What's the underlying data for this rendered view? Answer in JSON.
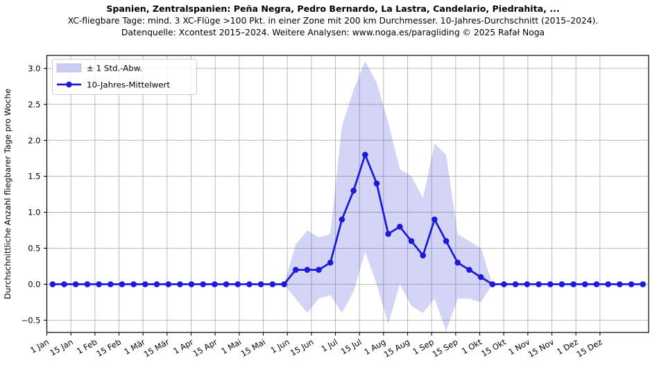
{
  "header": {
    "title": "Spanien, Zentralspanien: Peña Negra, Pedro Bernardo, La Lastra, Candelario, Piedrahita, ...",
    "subtitle1": "XC-fliegbare Tage: mind. 3 XC-Flüge >100 Pkt. in einer Zone mit 200 km Durchmesser. 10-Jahres-Durchschnitt (2015–2024).",
    "subtitle2": "Datenquelle: Xcontest 2015–2024. Weitere Analysen: www.noga.es/paragliding © 2025 Rafał Noga"
  },
  "chart_data": {
    "type": "line",
    "title": "Spanien, Zentralspanien: Peña Negra, Pedro Bernardo, La Lastra, Candelario, Piedrahita, ...",
    "xlabel": "",
    "ylabel": "Durchschnittliche Anzahl fliegbarer Tage pro Woche",
    "ylim": [
      -0.67,
      3.18
    ],
    "yticks": [
      -0.5,
      0.0,
      0.5,
      1.0,
      1.5,
      2.0,
      2.5,
      3.0
    ],
    "xtick_labels": [
      "1 Jan",
      "15 Jan",
      "1 Feb",
      "15 Feb",
      "1 Mär",
      "15 Mär",
      "1 Apr",
      "15 Apr",
      "1 Mai",
      "15 Mai",
      "1 Jun",
      "15 Jun",
      "1 Jul",
      "15 Jul",
      "1 Aug",
      "15 Aug",
      "1 Sep",
      "15 Sep",
      "1 Okt",
      "15 Okt",
      "1 Nov",
      "15 Nov",
      "1 Dez",
      "15 Dez"
    ],
    "x_unit": "Woche (1-52)",
    "weeks": 52,
    "grid": true,
    "legend_position": "upper left",
    "legend": [
      {
        "label": "± 1 Std.-Abw.",
        "type": "band"
      },
      {
        "label": "10-Jahres-Mittelwert",
        "type": "line-marker"
      }
    ],
    "series": [
      {
        "name": "10-Jahres-Mittelwert",
        "values": [
          0,
          0,
          0,
          0,
          0,
          0,
          0,
          0,
          0,
          0,
          0,
          0,
          0,
          0,
          0,
          0,
          0,
          0,
          0,
          0,
          0,
          0.2,
          0.2,
          0.2,
          0.3,
          0.9,
          1.3,
          1.8,
          1.4,
          0.7,
          0.8,
          0.6,
          0.4,
          0.9,
          0.6,
          0.3,
          0.2,
          0.1,
          0,
          0,
          0,
          0,
          0,
          0,
          0,
          0,
          0,
          0,
          0,
          0,
          0,
          0
        ]
      },
      {
        "name": "± 1 Std.-Abw. obere Grenze",
        "values": [
          0,
          0,
          0,
          0,
          0,
          0,
          0,
          0,
          0,
          0,
          0,
          0,
          0,
          0,
          0,
          0,
          0,
          0,
          0,
          0,
          0,
          0.55,
          0.75,
          0.65,
          0.7,
          2.2,
          2.7,
          3.1,
          2.8,
          2.25,
          1.6,
          1.5,
          1.2,
          1.95,
          1.8,
          0.7,
          0.6,
          0.5,
          0,
          0,
          0,
          0,
          0,
          0,
          0,
          0,
          0,
          0,
          0,
          0,
          0,
          0
        ]
      },
      {
        "name": "± 1 Std.-Abw. untere Grenze",
        "values": [
          0,
          0,
          0,
          0,
          0,
          0,
          0,
          0,
          0,
          0,
          0,
          0,
          0,
          0,
          0,
          0,
          0,
          0,
          0,
          0,
          0,
          -0.2,
          -0.4,
          -0.2,
          -0.15,
          -0.4,
          -0.1,
          0.45,
          0,
          -0.55,
          0,
          -0.3,
          -0.4,
          -0.2,
          -0.65,
          -0.2,
          -0.2,
          -0.25,
          0,
          0,
          0,
          0,
          0,
          0,
          0,
          0,
          0,
          0,
          0,
          0,
          0,
          0
        ]
      }
    ],
    "colors": {
      "line": "#1c1cd8",
      "band_fill": "rgba(60,60,215,0.22)",
      "legend_band_swatch": "#ccccf2",
      "grid": "#b2b2b2",
      "axis": "#000000"
    }
  }
}
